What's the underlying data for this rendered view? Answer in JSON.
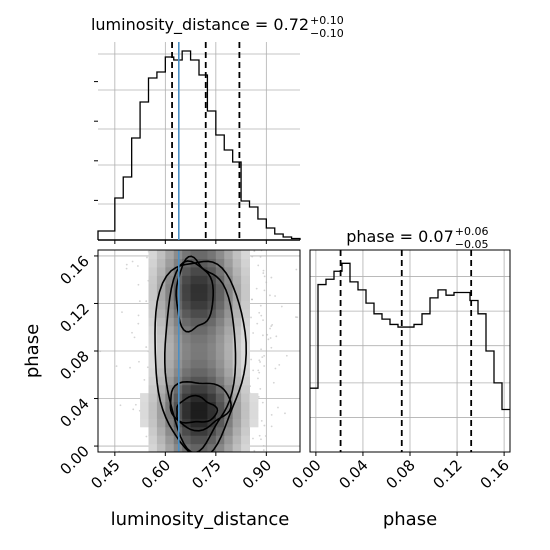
{
  "chart_data": [
    {
      "type": "histogram",
      "panel": "luminosity_distance-marginal",
      "title": {
        "param": "luminosity_distance",
        "value": "0.72",
        "plus": "+0.10",
        "minus": "−0.10"
      },
      "xlim": [
        0.4,
        1.0
      ],
      "bin_edges_start": 0.4,
      "bin_width": 0.025,
      "density": [
        0.3,
        0.3,
        1.4,
        2.1,
        3.4,
        4.6,
        5.4,
        5.6,
        6.1,
        6.0,
        6.3,
        6.0,
        5.5,
        4.3,
        3.5,
        3.0,
        2.6,
        1.3,
        1.1,
        0.7,
        0.4,
        0.2,
        0.1,
        0.05
      ],
      "quantiles": [
        0.62,
        0.72,
        0.82
      ],
      "truth": 0.64,
      "grid": true,
      "colors": {
        "hist": "#000000",
        "quantile": "#000000",
        "truth": "#4b8fc4",
        "grid": "#b0b0b0"
      }
    },
    {
      "type": "hist2d",
      "panel": "luminosity_distance-vs-phase",
      "xlabel": "luminosity_distance",
      "ylabel": "phase",
      "xlim": [
        0.4,
        1.0
      ],
      "ylim": [
        -0.005,
        0.165
      ],
      "xticks": [
        0.45,
        0.6,
        0.75,
        0.9
      ],
      "xtick_labels": [
        "0.45",
        "0.60",
        "0.75",
        "0.90"
      ],
      "yticks": [
        0.0,
        0.04,
        0.08,
        0.12,
        0.16
      ],
      "ytick_labels": [
        "0.00",
        "0.04",
        "0.08",
        "0.12",
        "0.16"
      ],
      "truth_x": 0.64,
      "grid": true,
      "colors": {
        "contour": "#000000",
        "truth": "#4b8fc4",
        "points": "#b8b8b8"
      }
    },
    {
      "type": "histogram",
      "panel": "phase-marginal",
      "title": {
        "param": "phase",
        "value": "0.07",
        "plus": "+0.06",
        "minus": "−0.05"
      },
      "xlabel": "phase",
      "xlim": [
        -0.005,
        0.165
      ],
      "xticks": [
        0.0,
        0.04,
        0.08,
        0.12,
        0.16
      ],
      "xtick_labels": [
        "0.00",
        "0.04",
        "0.08",
        "0.12",
        "0.16"
      ],
      "bin_edges_start": -0.005,
      "bin_width": 0.0068,
      "density": [
        2.4,
        6.3,
        6.5,
        6.8,
        7.1,
        6.4,
        6.1,
        5.6,
        5.2,
        5.0,
        4.8,
        4.7,
        4.7,
        4.8,
        5.2,
        5.8,
        6.1,
        5.9,
        6.0,
        6.0,
        5.7,
        5.2,
        3.8,
        2.6,
        1.6
      ],
      "quantiles": [
        0.021,
        0.073,
        0.132
      ],
      "grid": true,
      "colors": {
        "hist": "#000000",
        "quantile": "#000000",
        "grid": "#b0b0b0"
      }
    }
  ]
}
